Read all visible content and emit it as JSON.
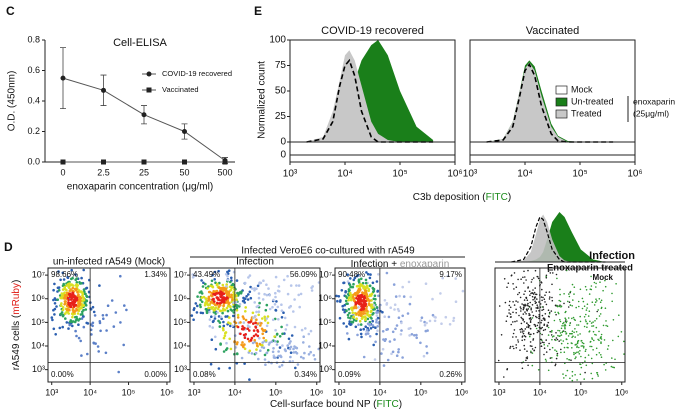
{
  "panel_labels": [
    "C",
    "E",
    "D"
  ],
  "group_title": "Infected VeroE6 co-cultured with rA549",
  "chart_data": [
    {
      "type": "line",
      "title": "Cell-ELISA",
      "categories": [
        "0",
        "2.5",
        "25",
        "50",
        "500"
      ],
      "series": [
        {
          "name": "COVID-19 recovered",
          "color": "#222222",
          "marker": "circle",
          "values": [
            0.55,
            0.47,
            0.31,
            0.2,
            0.01
          ],
          "errors": [
            0.2,
            0.1,
            0.06,
            0.05,
            0.02
          ]
        },
        {
          "name": "Vaccinated",
          "color": "#222222",
          "marker": "square",
          "values": [
            0,
            0,
            0,
            0,
            0
          ]
        }
      ],
      "ylim": [
        0,
        0.8
      ],
      "yticks": [
        {
          "value": 0,
          "label": "0.0"
        },
        0.2,
        0.4,
        0.6,
        0.8
      ],
      "x_label": "enoxaparin concentration (μg/ml)",
      "y_label": "O.D. (450nm)",
      "legend": "top-right"
    },
    {
      "type": "area",
      "title": "COVID-19 recovered",
      "x": [
        2000,
        4000,
        6000,
        8000,
        10000,
        12000,
        15000,
        20000,
        30000,
        40000,
        60000,
        100000,
        200000,
        400000
      ],
      "series": [
        {
          "color": "#000000",
          "style": "dashed",
          "values": [
            0,
            3,
            20,
            55,
            75,
            80,
            65,
            30,
            5,
            0,
            0,
            0,
            0,
            0
          ]
        },
        {
          "color": "#1a7f1a",
          "style": "fill",
          "values": [
            0,
            2,
            5,
            12,
            25,
            40,
            60,
            80,
            95,
            100,
            85,
            50,
            15,
            2
          ]
        },
        {
          "color": "#c8c8c8",
          "style": "fill",
          "values": [
            0,
            5,
            30,
            60,
            85,
            90,
            80,
            55,
            20,
            8,
            2,
            0,
            0,
            0
          ]
        }
      ],
      "xlim": [
        1000,
        1000000
      ],
      "xticks": [
        {
          "value": 1000,
          "label": "10³"
        },
        {
          "value": 10000,
          "label": "10⁴"
        },
        {
          "value": 100000,
          "label": "10⁵"
        },
        {
          "value": 1000000,
          "label": "10⁶"
        }
      ],
      "ylim": [
        0,
        100
      ],
      "yticks": [
        0,
        25,
        50,
        75,
        100
      ],
      "lower_yticks": [
        0
      ],
      "x_label": [
        "C3b deposition (",
        "FITC",
        ")"
      ],
      "y_label": "Normalized count"
    },
    {
      "type": "area",
      "title": "Vaccinated",
      "x": [
        2000,
        4000,
        6000,
        8000,
        10000,
        12000,
        15000,
        20000,
        30000,
        40000,
        60000,
        100000,
        200000,
        400000
      ],
      "series": [
        {
          "name": "Mock",
          "color": "#000000",
          "style": "dashed",
          "values": [
            0,
            2,
            15,
            45,
            70,
            76,
            65,
            35,
            8,
            1,
            0,
            0,
            0,
            0
          ]
        },
        {
          "name": "Un-treated",
          "color": "#1a7f1a",
          "style": "fill",
          "values": [
            0,
            3,
            20,
            50,
            75,
            80,
            74,
            50,
            18,
            6,
            1,
            0,
            0,
            0
          ]
        },
        {
          "name": "Treated",
          "color": "#c8c8c8",
          "style": "fill",
          "values": [
            0,
            3,
            20,
            50,
            72,
            78,
            70,
            45,
            15,
            5,
            0,
            0,
            0,
            0
          ]
        }
      ],
      "xlim": [
        1000,
        1000000
      ],
      "xticks": [
        {
          "value": 1000,
          "label": "10³"
        },
        {
          "value": 10000,
          "label": "10⁴"
        },
        {
          "value": 100000,
          "label": "10⁵"
        },
        {
          "value": 1000000,
          "label": "10⁶"
        }
      ],
      "ylim": [
        0,
        100
      ],
      "legend_note": [
        "enoxaparin",
        "(25μg/ml)"
      ]
    },
    {
      "type": "density",
      "title": "un-infected rA549 (Mock)",
      "xlim": [
        800,
        1200000
      ],
      "ylim": [
        300,
        20000000
      ],
      "log": true,
      "gate": {
        "x": 10000,
        "y": 2000
      },
      "xticks": [
        {
          "value": 1000,
          "label": "10³"
        },
        {
          "value": 10000,
          "label": "10⁴"
        },
        {
          "value": 100000,
          "label": "10⁵"
        },
        {
          "value": 1000000,
          "label": "10⁶"
        }
      ],
      "yticks": [
        {
          "value": 1000,
          "label": "10³"
        },
        {
          "value": 10000,
          "label": "10⁴"
        },
        {
          "value": 100000,
          "label": "10⁵"
        },
        {
          "value": 1000000,
          "label": "10⁶"
        },
        {
          "value": 10000000,
          "label": "10⁷"
        }
      ],
      "quadrants": [
        {
          "value": 98.66,
          "label": "98.66%"
        },
        {
          "value": 1.34,
          "label": "1.34%"
        },
        {
          "value": 0,
          "label": "0.00%"
        },
        {
          "value": 0,
          "label": "0.00%"
        }
      ],
      "x_label": [
        "Cell-surface bound NP (",
        "FITC",
        ")"
      ],
      "y_label": [
        "rA549 cells (",
        "mRuby",
        ")"
      ]
    },
    {
      "type": "density",
      "title": "Infection",
      "xlim": [
        800,
        1200000
      ],
      "ylim": [
        300,
        20000000
      ],
      "log": true,
      "gate": {
        "x": 10000,
        "y": 2000
      },
      "xticks": [
        {
          "value": 1000,
          "label": "10³"
        },
        {
          "value": 10000,
          "label": "10⁴"
        },
        {
          "value": 100000,
          "label": "10⁵"
        },
        {
          "value": 1000000,
          "label": "10⁶"
        }
      ],
      "yticks": [
        {
          "value": 1000,
          "label": "10³"
        },
        {
          "value": 10000,
          "label": "10⁴"
        },
        {
          "value": 100000,
          "label": "10⁵"
        },
        {
          "value": 1000000,
          "label": "10⁶"
        },
        {
          "value": 10000000,
          "label": "10⁷"
        }
      ],
      "quadrants": [
        {
          "value": 43.49,
          "label": "43.49%"
        },
        {
          "value": 56.09,
          "label": "56.09%"
        },
        {
          "value": 0.08,
          "label": "0.08%"
        },
        {
          "value": 0.34,
          "label": "0.34%"
        }
      ]
    },
    {
      "type": "density",
      "title_parts": [
        "Infection + ",
        "enoxaparin"
      ],
      "xlim": [
        800,
        1200000
      ],
      "ylim": [
        300,
        20000000
      ],
      "log": true,
      "gate": {
        "x": 10000,
        "y": 2000
      },
      "xticks": [
        {
          "value": 1000,
          "label": "10³"
        },
        {
          "value": 10000,
          "label": "10⁴"
        },
        {
          "value": 100000,
          "label": "10⁵"
        },
        {
          "value": 1000000,
          "label": "10⁶"
        }
      ],
      "yticks": [
        {
          "value": 1000,
          "label": "10³"
        },
        {
          "value": 10000,
          "label": "10⁴"
        },
        {
          "value": 100000,
          "label": "10⁵"
        },
        {
          "value": 1000000,
          "label": "10⁶"
        },
        {
          "value": 10000000,
          "label": "10⁷"
        }
      ],
      "quadrants": [
        {
          "value": 90.48,
          "label": "90.48%"
        },
        {
          "value": 9.17,
          "label": "9.17%"
        },
        {
          "value": 0.09,
          "label": "0.09%"
        },
        {
          "value": 0.26,
          "label": "0.26%"
        }
      ]
    },
    {
      "type": "density",
      "xlim": [
        800,
        1200000
      ],
      "ylim": [
        300,
        20000000
      ],
      "log": true,
      "gate": {
        "x": 10000,
        "y": 2000
      },
      "xticks": [
        {
          "value": 1000,
          "label": "10³"
        },
        {
          "value": 10000,
          "label": "10⁴"
        },
        {
          "value": 100000,
          "label": "10⁵"
        },
        {
          "value": 1000000,
          "label": "10⁶"
        }
      ],
      "x": [
        2000,
        4000,
        6000,
        8000,
        10000,
        12000,
        15000,
        20000,
        30000,
        40000,
        60000,
        100000,
        200000,
        400000
      ],
      "hist_ylim": [
        0,
        100
      ],
      "series": [
        {
          "name": "Infection",
          "color": "#1a7f1a",
          "style": "fill",
          "values": [
            0,
            0,
            2,
            5,
            10,
            20,
            45,
            80,
            100,
            90,
            60,
            25,
            5,
            0
          ]
        },
        {
          "name": "Enoxaparin treated",
          "color": "#c0c0c0",
          "style": "fill",
          "values": [
            0,
            3,
            20,
            55,
            85,
            95,
            80,
            45,
            12,
            3,
            0,
            0,
            0,
            0
          ]
        },
        {
          "name": "Mock",
          "color": "#000000",
          "style": "dashed",
          "values": [
            0,
            5,
            30,
            70,
            90,
            85,
            60,
            25,
            5,
            0,
            0,
            0,
            0,
            0
          ]
        }
      ]
    }
  ]
}
